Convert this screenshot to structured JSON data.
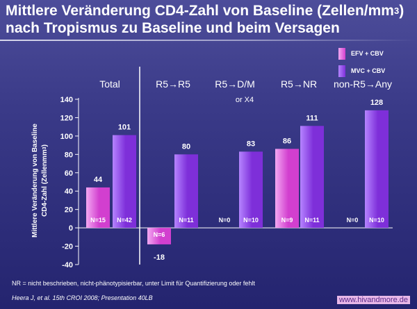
{
  "header": {
    "title_line1": "Mittlere Veränderung CD4-Zahl von Baseline (Zellen/mm",
    "title_sup": "3",
    "title_line1_end": ")",
    "title_line2": "nach Tropismus zu Baseline und beim Versagen"
  },
  "colors": {
    "efv": "#d23fcf",
    "efv_light": "#f3a8f2",
    "mvc": "#7e2fd9",
    "mvc_light": "#b584ff",
    "axis": "#ffffff"
  },
  "chart_data": {
    "type": "bar",
    "title": "Mittlere Veränderung CD4-Zahl von Baseline (Zellen/mm3) nach Tropismus zu Baseline und beim Versagen",
    "ylabel_line1": "Mittlere Veränderung von Baseline",
    "ylabel_line2": "CD4-Zahl (Zellenmm",
    "ylabel_sup": "3",
    "ylabel_end": ")",
    "ylim": [
      -40,
      140
    ],
    "yticks": [
      "140",
      "120",
      "100",
      "80",
      "60",
      "40",
      "20",
      "0",
      "-20",
      "-40"
    ],
    "ytick_values": [
      140,
      120,
      100,
      80,
      60,
      40,
      20,
      0,
      -20,
      -40
    ],
    "grid": false,
    "legend_position": "top-right",
    "categories": [
      {
        "main": "Total",
        "sub": ""
      },
      {
        "main": "R5→R5",
        "sub": ""
      },
      {
        "main": "R5→D/M",
        "sub": "or X4"
      },
      {
        "main": "R5→NR",
        "sub": ""
      },
      {
        "main": "non-R5→Any",
        "sub": ""
      }
    ],
    "series": [
      {
        "name": "EFV + CBV",
        "values": [
          44,
          -18,
          null,
          86,
          null
        ],
        "value_labels": [
          "44",
          "-18",
          "",
          "86",
          ""
        ],
        "n_labels": [
          "N=15",
          "N=6",
          "N=0",
          "N=9",
          "N=0"
        ]
      },
      {
        "name": "MVC + CBV",
        "values": [
          101,
          80,
          83,
          111,
          128
        ],
        "value_labels": [
          "101",
          "80",
          "83",
          "111",
          "128"
        ],
        "n_labels": [
          "N=42",
          "N=11",
          "N=10",
          "N=11",
          "N=10"
        ]
      }
    ]
  },
  "footer": {
    "footnote": "NR = nicht beschrieben, nicht-phänotypisierbar, unter Limit für Quantifizierung oder fehlt",
    "citation": "Heera J, et al. 15th CROI 2008; Presentation 40LB",
    "site": "www.hivandmore.de"
  }
}
